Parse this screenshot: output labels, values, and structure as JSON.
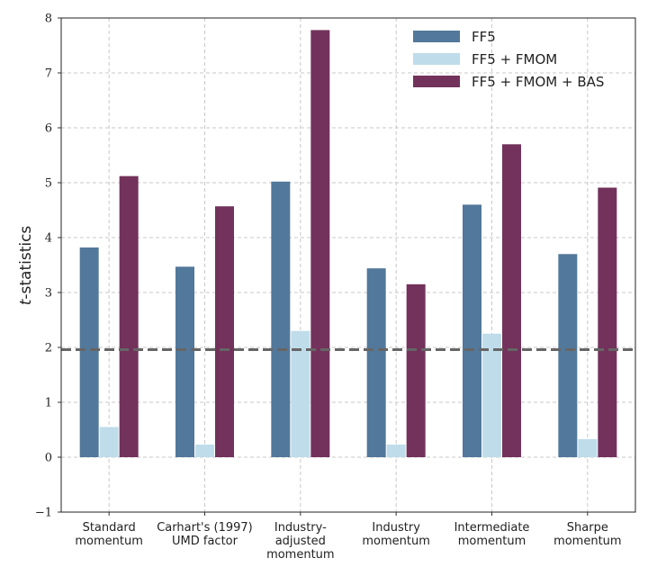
{
  "chart_data": {
    "type": "bar",
    "title": "",
    "xlabel": "",
    "ylabel_italic": "t",
    "ylabel_rest": "-statistics",
    "ylim": [
      -1,
      8
    ],
    "yticks": [
      -1,
      0,
      1,
      2,
      3,
      4,
      5,
      6,
      7,
      8
    ],
    "grid": true,
    "legend_position": "top-right",
    "reference_line": {
      "y": 1.96,
      "style": "dashed",
      "color": "#666666"
    },
    "categories": [
      [
        "Standard",
        "momentum"
      ],
      [
        "Carhart's (1997)",
        "UMD factor"
      ],
      [
        "Industry-",
        "adjusted",
        "momentum"
      ],
      [
        "Industry",
        "momentum"
      ],
      [
        "Intermediate",
        "momentum"
      ],
      [
        "Sharpe",
        "momentum"
      ]
    ],
    "series": [
      {
        "name": "FF5",
        "color": "#52789b",
        "values": [
          3.82,
          3.47,
          5.02,
          3.44,
          4.6,
          3.7
        ]
      },
      {
        "name": "FF5 + FMOM",
        "color": "#bfdcea",
        "values": [
          0.55,
          0.23,
          2.3,
          0.23,
          2.25,
          0.33
        ]
      },
      {
        "name": "FF5 + FMOM + BAS",
        "color": "#72325b",
        "values": [
          5.12,
          4.57,
          7.78,
          3.15,
          5.7,
          4.91
        ]
      }
    ]
  }
}
